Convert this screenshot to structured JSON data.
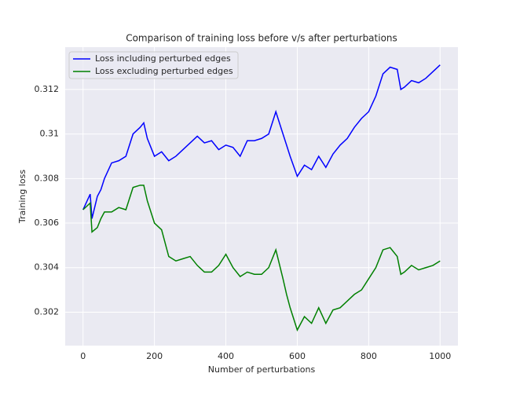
{
  "chart_data": {
    "type": "line",
    "title": "Comparison of training loss before v/s after perturbations",
    "x_label": "Number of perturbations",
    "y_label": "Training loss",
    "x": [
      0,
      20,
      25,
      40,
      50,
      60,
      80,
      100,
      120,
      140,
      160,
      170,
      180,
      200,
      220,
      240,
      260,
      280,
      300,
      320,
      340,
      360,
      380,
      400,
      420,
      440,
      460,
      480,
      500,
      520,
      540,
      560,
      570,
      580,
      600,
      620,
      640,
      660,
      680,
      700,
      720,
      740,
      760,
      780,
      800,
      820,
      840,
      860,
      880,
      890,
      900,
      920,
      940,
      960,
      980,
      1000
    ],
    "series": [
      {
        "name": "Loss including perturbed edges",
        "color": "#0000ff",
        "values": [
          0.3066,
          0.3073,
          0.3062,
          0.3072,
          0.3075,
          0.308,
          0.3087,
          0.3088,
          0.309,
          0.31,
          0.3103,
          0.3105,
          0.3098,
          0.309,
          0.3092,
          0.3088,
          0.309,
          0.3093,
          0.3096,
          0.3099,
          0.3096,
          0.3097,
          0.3093,
          0.3095,
          0.3094,
          0.309,
          0.3097,
          0.3097,
          0.3098,
          0.31,
          0.311,
          0.31,
          0.3095,
          0.309,
          0.3081,
          0.3086,
          0.3084,
          0.309,
          0.3085,
          0.3091,
          0.3095,
          0.3098,
          0.3103,
          0.3107,
          0.311,
          0.3117,
          0.3127,
          0.313,
          0.3129,
          0.312,
          0.3121,
          0.3124,
          0.3123,
          0.3125,
          0.3128,
          0.3131
        ]
      },
      {
        "name": "Loss excluding perturbed edges",
        "color": "#008000",
        "values": [
          0.3066,
          0.3069,
          0.3056,
          0.3058,
          0.3062,
          0.3065,
          0.3065,
          0.3067,
          0.3066,
          0.3076,
          0.3077,
          0.3077,
          0.307,
          0.306,
          0.3057,
          0.3045,
          0.3043,
          0.3044,
          0.3045,
          0.3041,
          0.3038,
          0.3038,
          0.3041,
          0.3046,
          0.304,
          0.3036,
          0.3038,
          0.3037,
          0.3037,
          0.304,
          0.3048,
          0.3035,
          0.3028,
          0.3022,
          0.3012,
          0.3018,
          0.3015,
          0.3022,
          0.3015,
          0.3021,
          0.3022,
          0.3025,
          0.3028,
          0.303,
          0.3035,
          0.304,
          0.3048,
          0.3049,
          0.3045,
          0.3037,
          0.3038,
          0.3041,
          0.3039,
          0.304,
          0.3041,
          0.3043
        ]
      }
    ],
    "xlim": [
      -50,
      1050
    ],
    "xticks": [
      0,
      200,
      400,
      600,
      800,
      1000
    ],
    "ylim": [
      0.3005,
      0.3139
    ],
    "yticks": [
      0.302,
      0.304,
      0.306,
      0.308,
      0.31,
      0.312
    ],
    "grid": true,
    "legend": "upper left"
  }
}
